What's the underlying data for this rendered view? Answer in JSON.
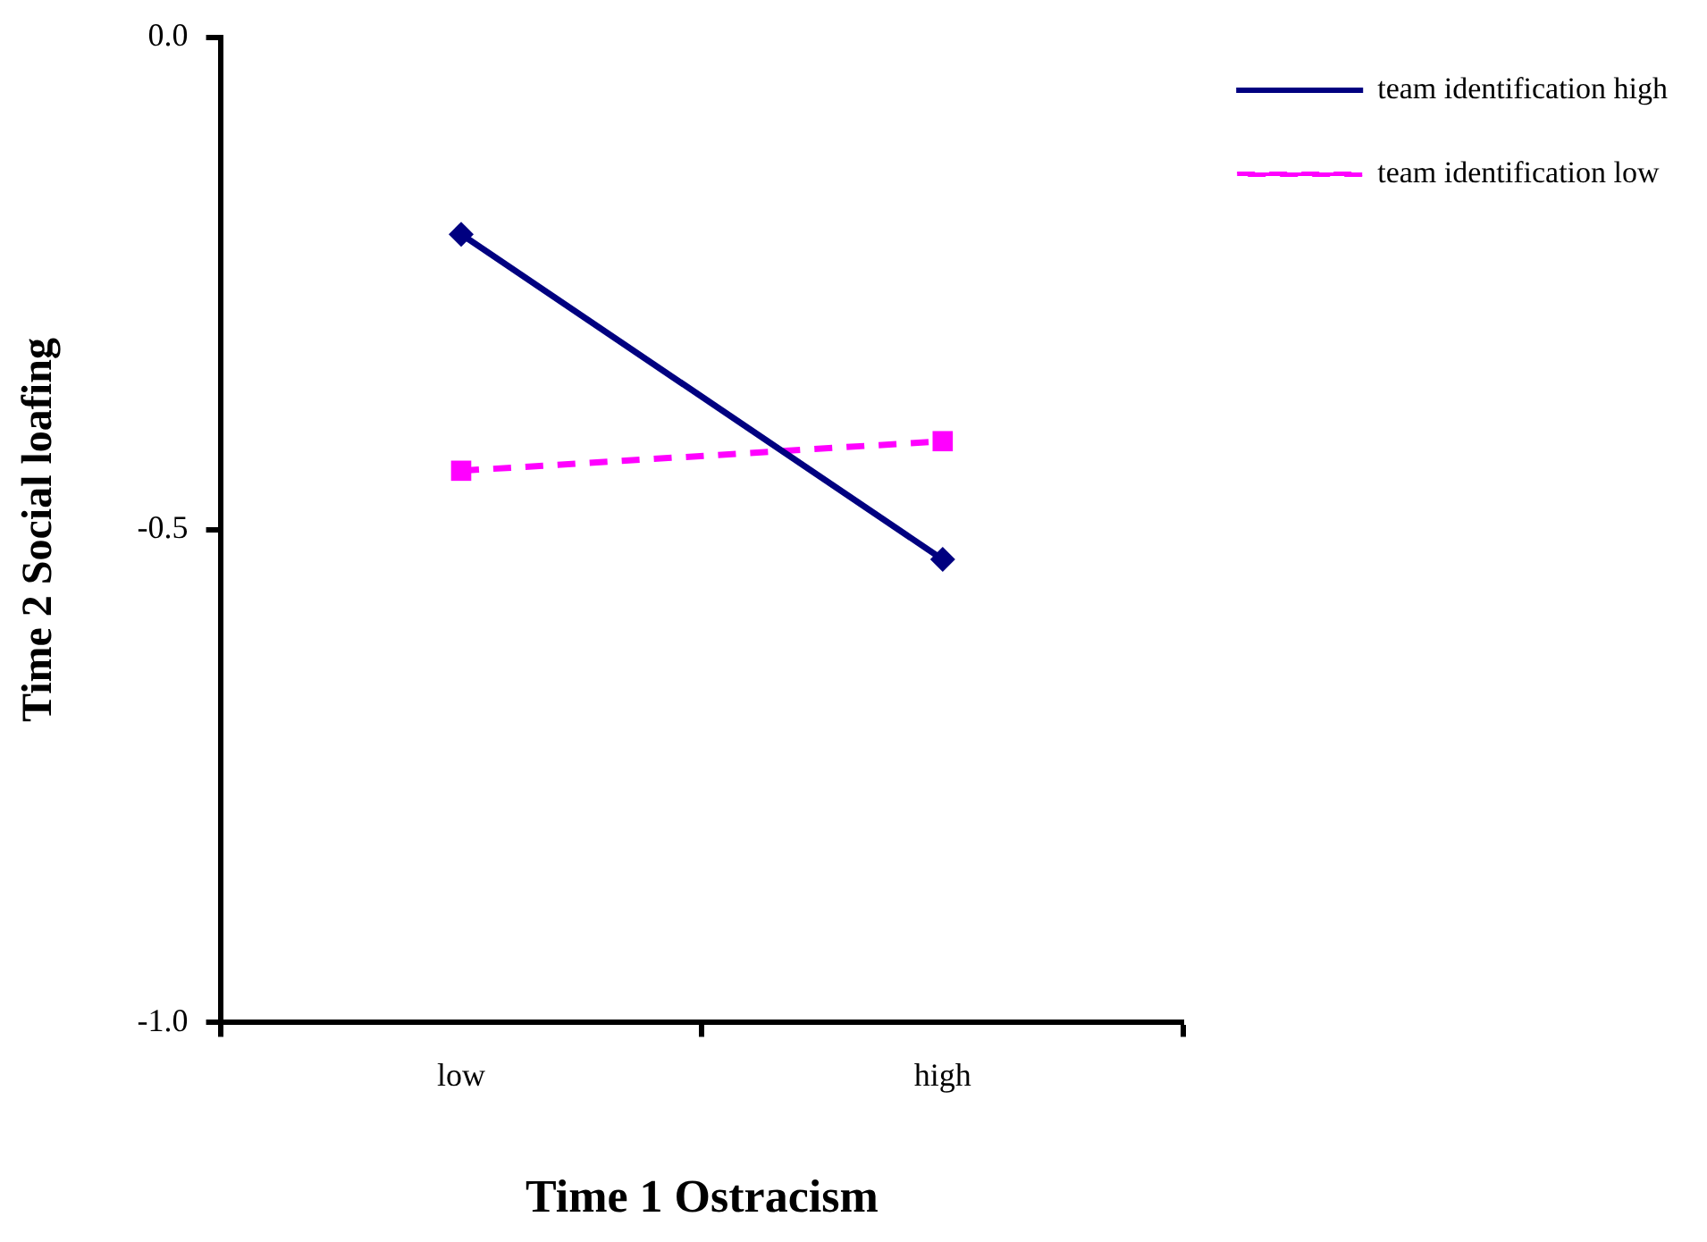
{
  "chart_data": {
    "type": "line",
    "xlabel": "Time 1 Ostracism",
    "ylabel": "Time 2 Social loafing",
    "categories": [
      "low",
      "high"
    ],
    "series": [
      {
        "name": "team identification high",
        "color": "#000080",
        "values": [
          -0.2,
          -0.53
        ],
        "marker": "diamond",
        "line_style": "solid"
      },
      {
        "name": "team identification low",
        "color": "#ff00ff",
        "values": [
          -0.44,
          -0.41
        ],
        "marker": "square",
        "line_style": "dashed"
      }
    ],
    "ylim": [
      -1.0,
      0.0
    ],
    "yticks": [
      {
        "value": -1.0,
        "label": "-1.0"
      },
      {
        "value": -0.5,
        "label": "-0.5"
      },
      {
        "value": 0.0,
        "label": "0.0"
      }
    ],
    "grid": false,
    "legend": "top right"
  }
}
